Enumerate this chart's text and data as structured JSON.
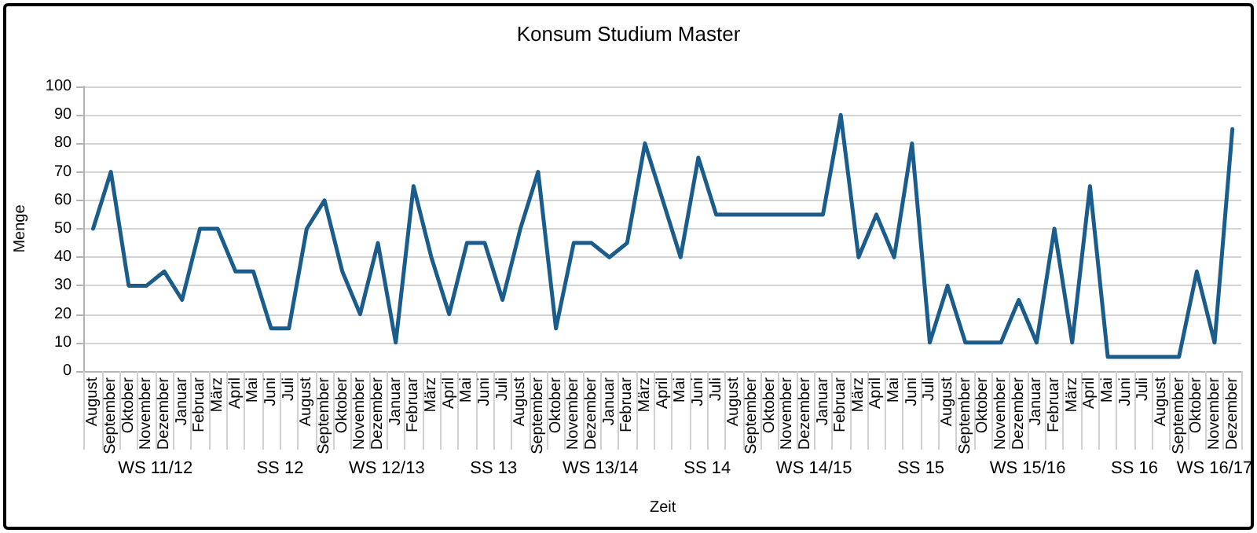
{
  "chart_data": {
    "type": "line",
    "title": "Konsum Studium Master",
    "xlabel": "Zeit",
    "ylabel": "Menge",
    "categories": [
      "August",
      "September",
      "Oktober",
      "November",
      "Dezember",
      "Januar",
      "Februar",
      "März",
      "April",
      "Mai",
      "Juni",
      "Juli",
      "August",
      "September",
      "Oktober",
      "November",
      "Dezember",
      "Januar",
      "Februar",
      "März",
      "April",
      "Mai",
      "Juni",
      "Juli",
      "August",
      "September",
      "Oktober",
      "November",
      "Dezember",
      "Januar",
      "Februar",
      "März",
      "April",
      "Mai",
      "Juni",
      "Juli",
      "August",
      "September",
      "Oktober",
      "November",
      "Dezember",
      "Januar",
      "Februar",
      "März",
      "April",
      "Mai",
      "Juni",
      "Juli",
      "August",
      "September",
      "Oktober",
      "November",
      "Dezember",
      "Januar",
      "Februar",
      "März",
      "April",
      "Mai",
      "Juni",
      "Juli",
      "August",
      "September",
      "Oktober",
      "November",
      "Dezember"
    ],
    "series": [
      {
        "color": "#1a5c8c",
        "values": [
          50,
          70,
          30,
          30,
          35,
          25,
          50,
          50,
          35,
          35,
          15,
          15,
          50,
          60,
          35,
          20,
          45,
          10,
          65,
          40,
          20,
          45,
          45,
          25,
          50,
          70,
          15,
          45,
          45,
          40,
          45,
          80,
          60,
          40,
          75,
          55,
          55,
          55,
          55,
          55,
          55,
          55,
          90,
          40,
          55,
          40,
          80,
          10,
          30,
          10,
          10,
          10,
          25,
          10,
          50,
          10,
          65,
          5,
          5,
          5,
          5,
          5,
          35,
          10,
          85
        ]
      }
    ],
    "ylim": [
      0,
      100
    ],
    "yticks": [
      0,
      10,
      20,
      30,
      40,
      50,
      60,
      70,
      80,
      90,
      100
    ],
    "grid": "y",
    "marker": "none",
    "line_style": "solid",
    "annotations": [
      "WS 11/12",
      "SS 12",
      "WS 12/13",
      "SS 13",
      "WS 13/14",
      "SS 14",
      "WS 14/15",
      "SS 15",
      "WS 15/16",
      "SS 16",
      "WS 16/17"
    ]
  }
}
